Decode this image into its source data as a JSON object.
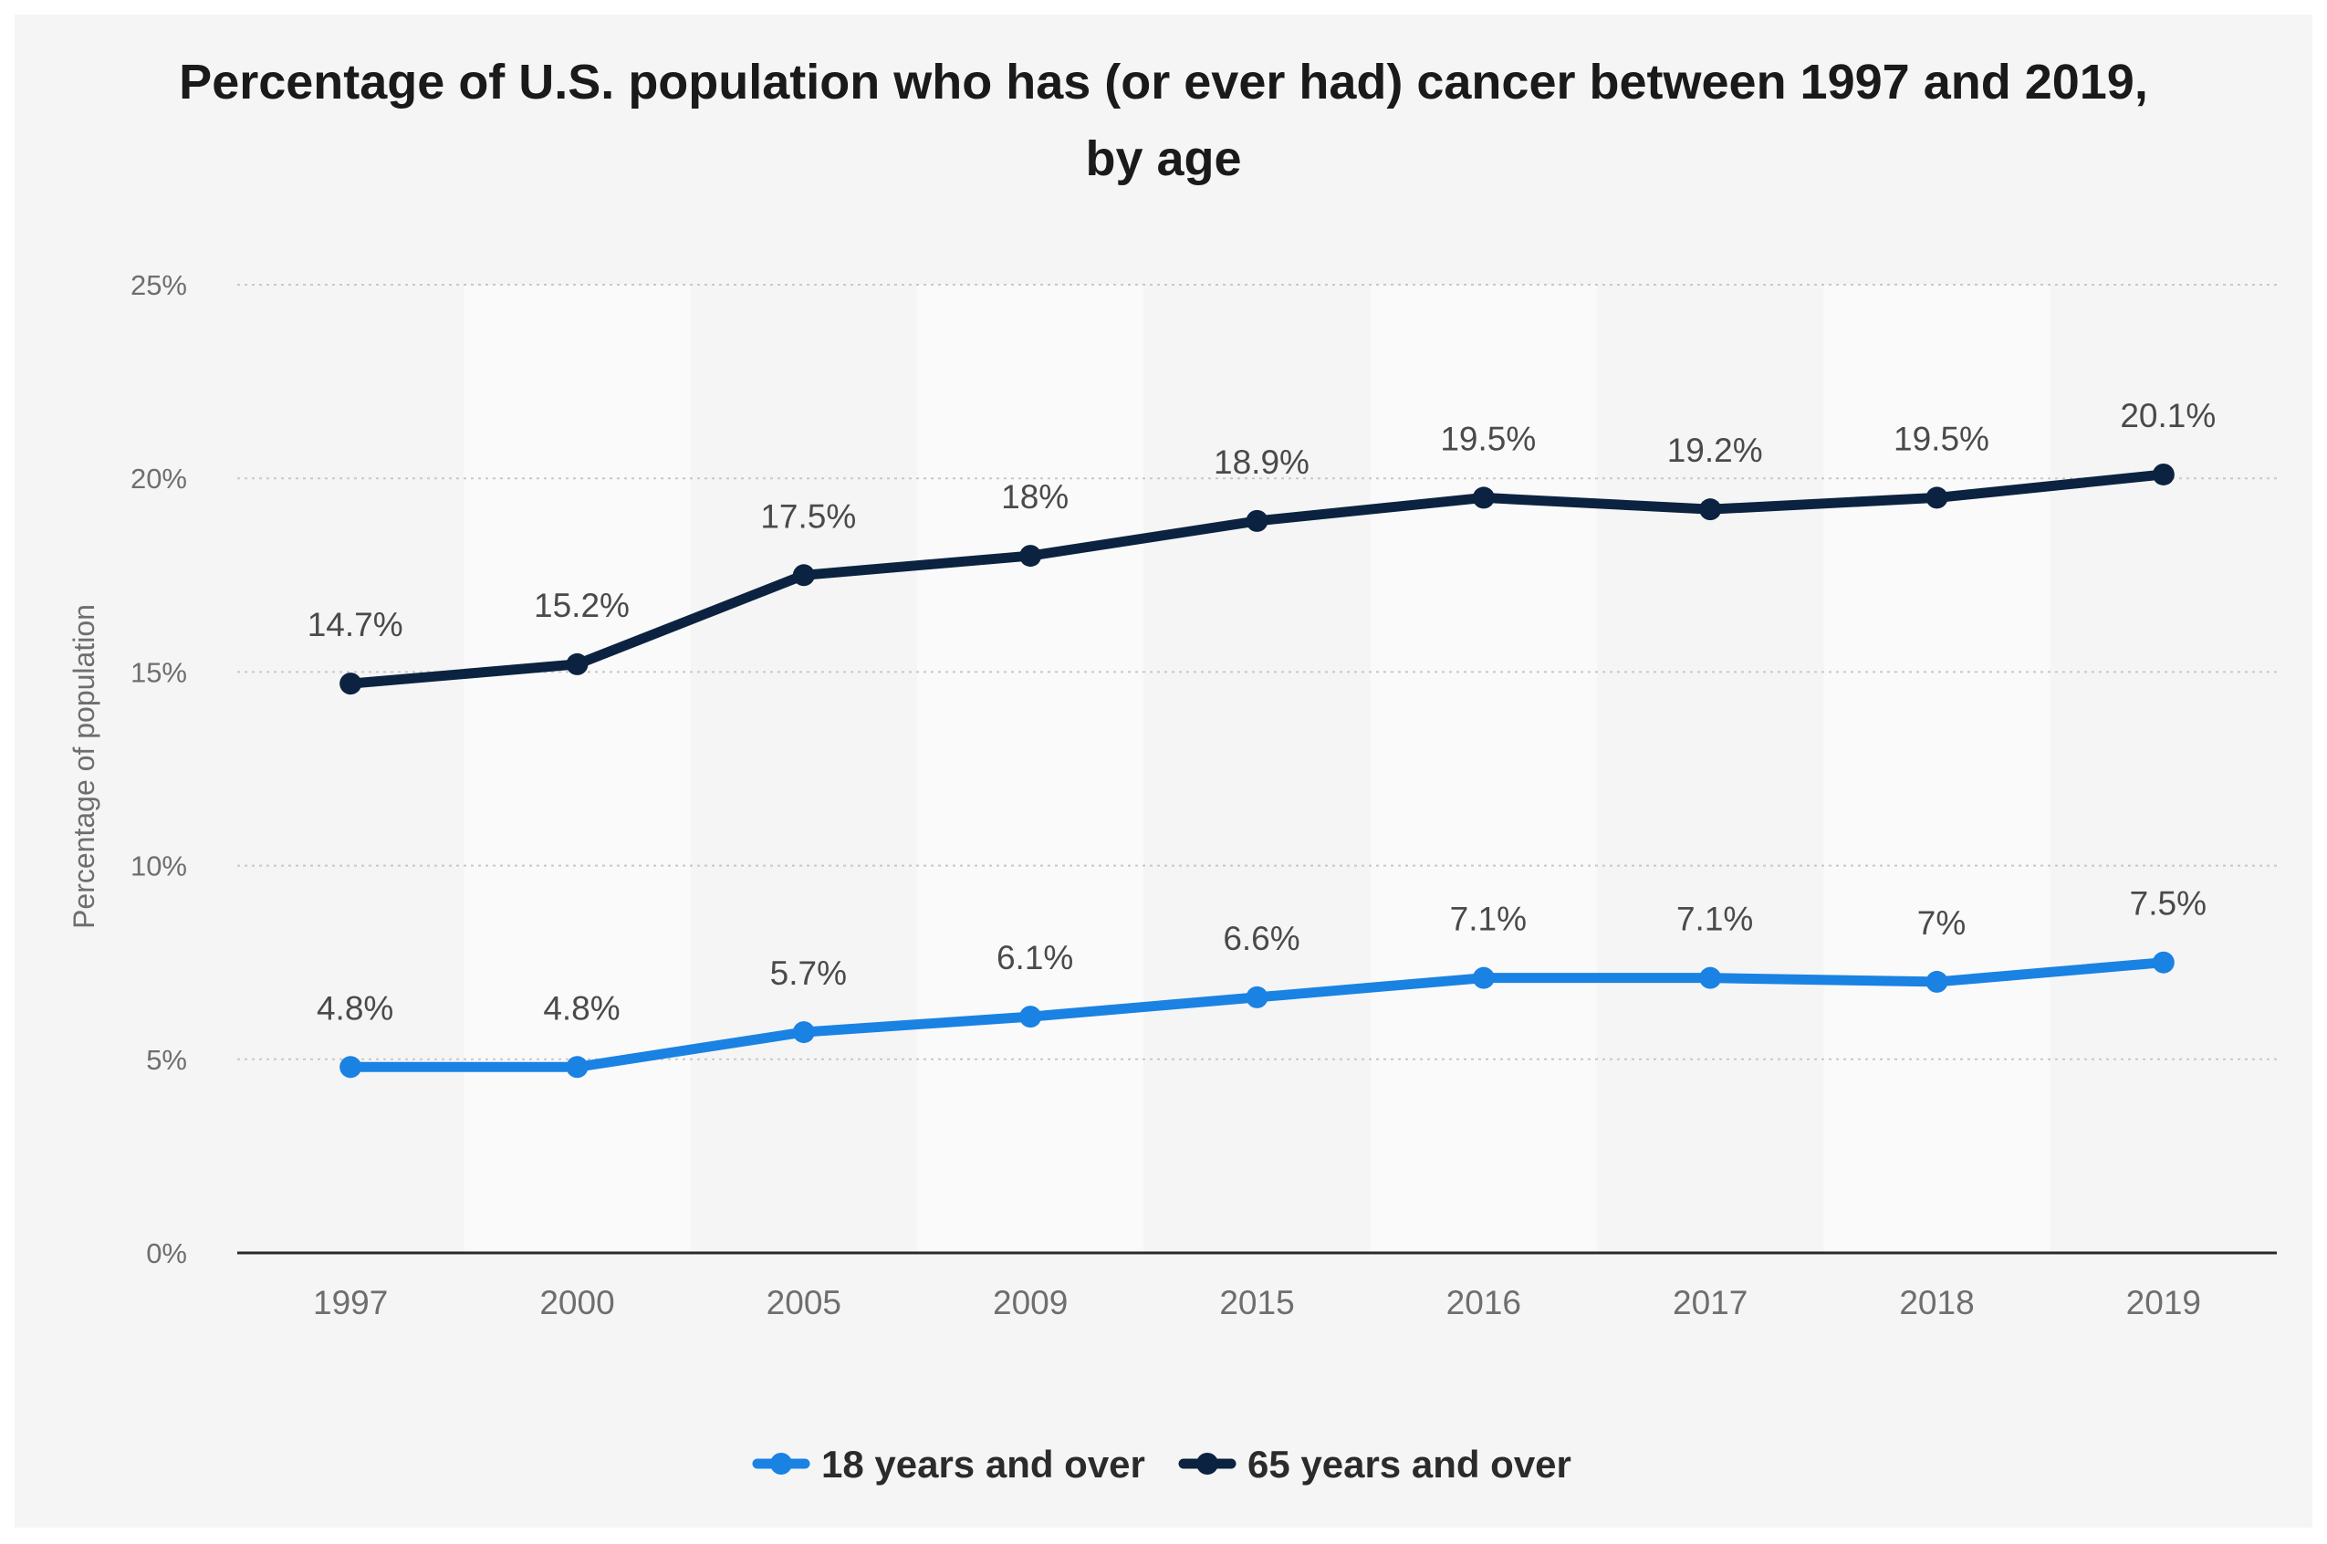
{
  "chart_data": {
    "type": "line",
    "title": "Percentage of U.S. population who has (or ever had) cancer between 1997 and 2019,",
    "subtitle": "by age",
    "xlabel": "",
    "ylabel": "Percentage of population",
    "categories": [
      "1997",
      "2000",
      "2005",
      "2009",
      "2015",
      "2016",
      "2017",
      "2018",
      "2019"
    ],
    "yticks": [
      "0%",
      "5%",
      "10%",
      "15%",
      "20%",
      "25%"
    ],
    "ylim": [
      0,
      25
    ],
    "grid": true,
    "legend_position": "bottom",
    "series": [
      {
        "name": "18 years and over",
        "color": "#1a82e2",
        "values": [
          4.8,
          4.8,
          5.7,
          6.1,
          6.6,
          7.1,
          7.1,
          7.0,
          7.5
        ],
        "labels": [
          "4.8%",
          "4.8%",
          "5.7%",
          "6.1%",
          "6.6%",
          "7.1%",
          "7.1%",
          "7%",
          "7.5%"
        ]
      },
      {
        "name": "65 years and over",
        "color": "#0b2340",
        "values": [
          14.7,
          15.2,
          17.5,
          18.0,
          18.9,
          19.5,
          19.2,
          19.5,
          20.1
        ],
        "labels": [
          "14.7%",
          "15.2%",
          "17.5%",
          "18%",
          "18.9%",
          "19.5%",
          "19.2%",
          "19.5%",
          "20.1%"
        ]
      }
    ]
  }
}
